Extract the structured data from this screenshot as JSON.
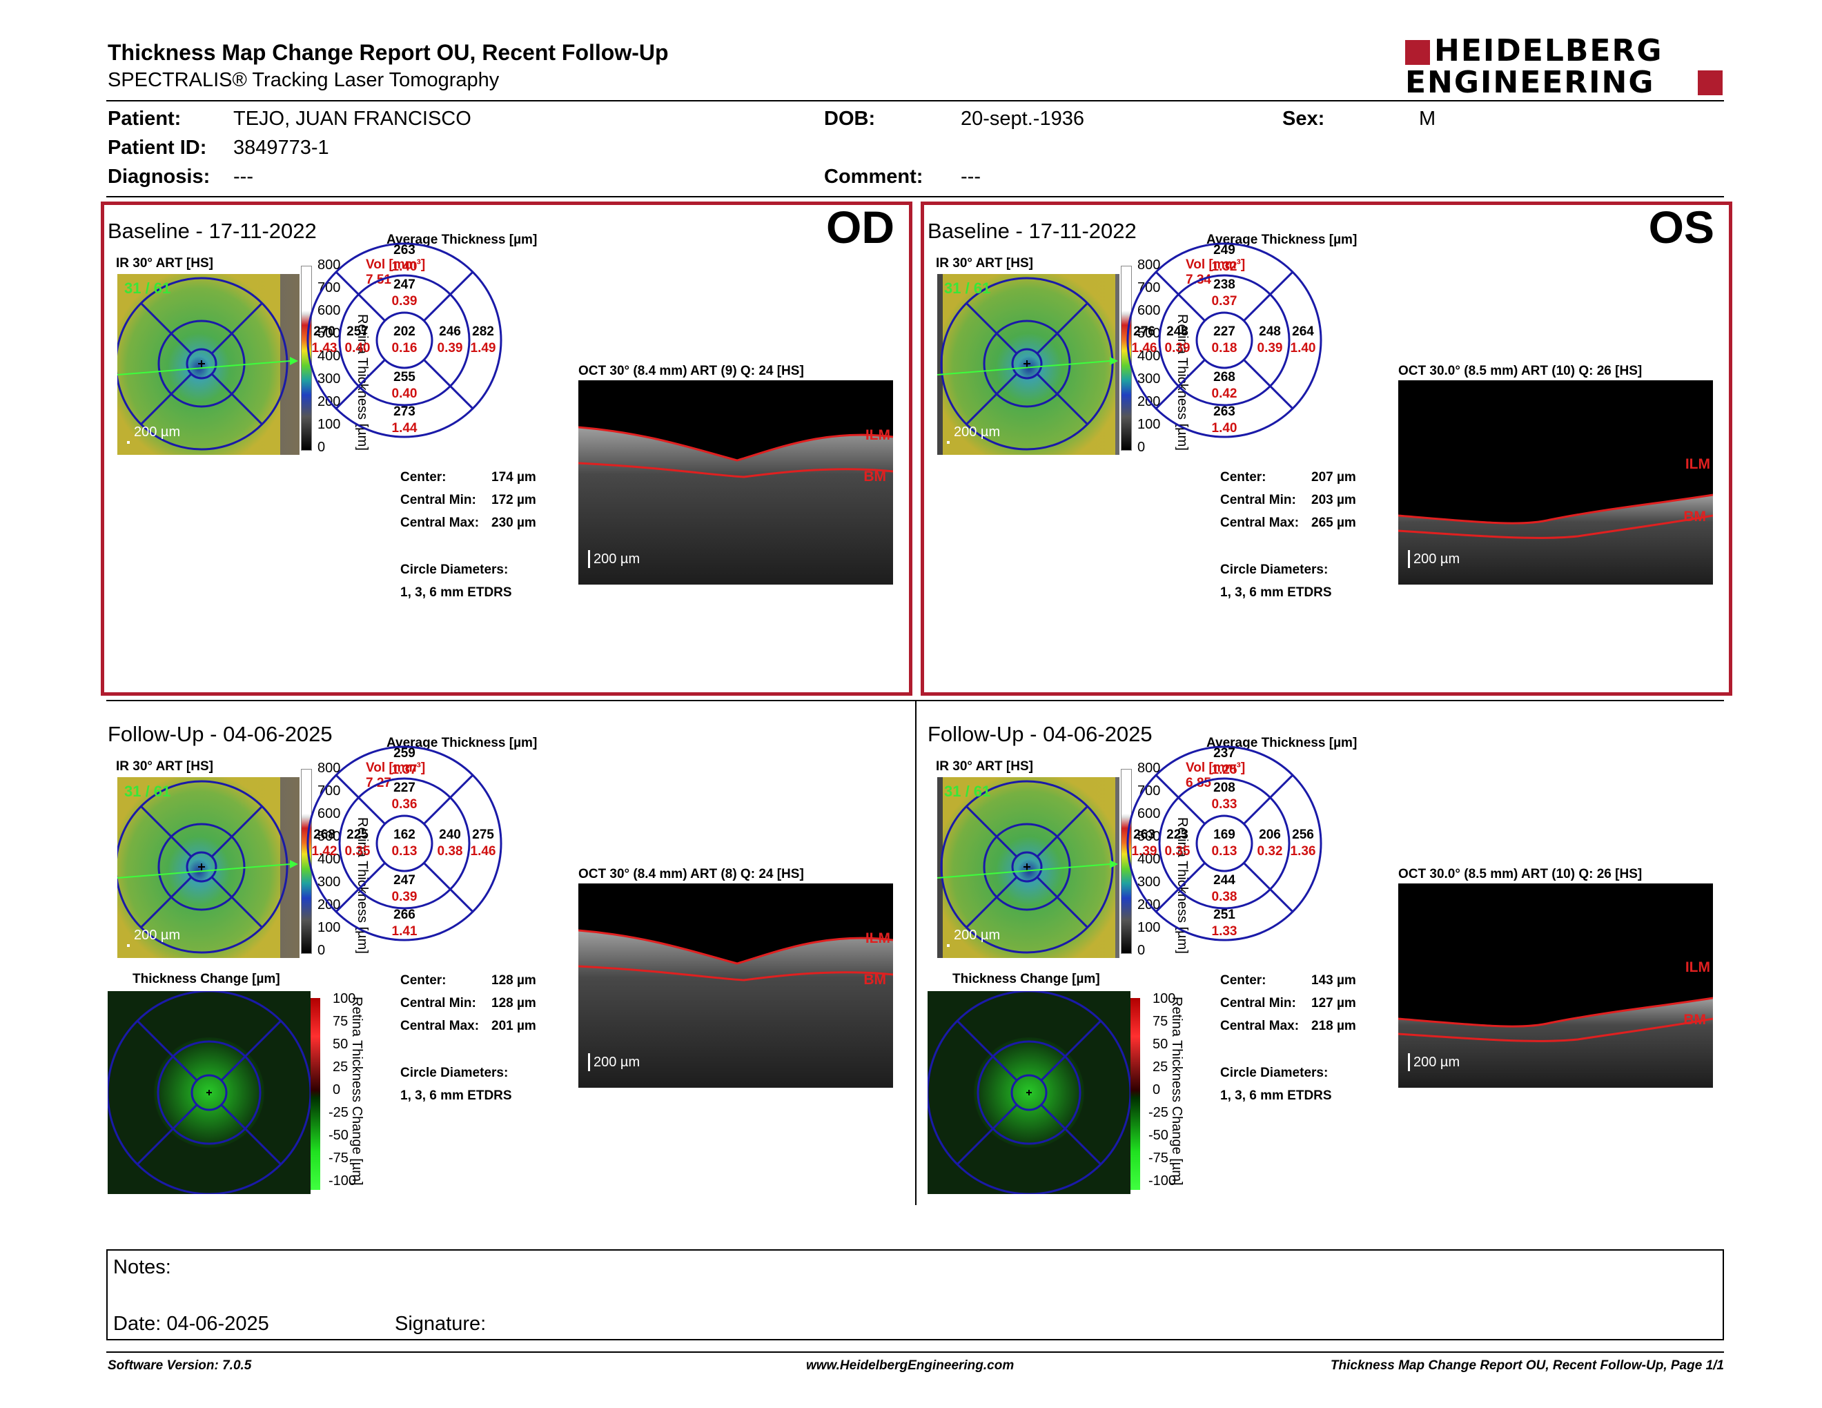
{
  "header": {
    "title": "Thickness Map Change Report OU, Recent Follow-Up",
    "subtitle": "SPECTRALIS® Tracking Laser Tomography",
    "logo_line1": "HEIDELBERG",
    "logo_line2": "ENGINEERING"
  },
  "patient": {
    "patient_label": "Patient:",
    "patient_value": "TEJO, JUAN FRANCISCO",
    "id_label": "Patient ID:",
    "id_value": "3849773-1",
    "diagnosis_label": "Diagnosis:",
    "diagnosis_value": "---",
    "dob_label": "DOB:",
    "dob_value": "20-sept.-1936",
    "comment_label": "Comment:",
    "comment_value": "---",
    "sex_label": "Sex:",
    "sex_value": "M"
  },
  "common": {
    "avg_thickness": "Average Thickness [µm]",
    "vol_label": "Vol [mm³]",
    "ir_label": "IR 30° ART [HS]",
    "scale_200": "200 µm",
    "center_label": "Center:",
    "cmin_label": "Central Min:",
    "cmax_label": "Central Max:",
    "circle_label": "Circle Diameters:",
    "circle_value": "1, 3, 6 mm ETDRS",
    "ilm": "ILM",
    "bm": "BM",
    "cbar_title": "Retina Thickness [µm]",
    "cbar_ticks": [
      "800",
      "700",
      "600",
      "500",
      "400",
      "300",
      "200",
      "100",
      "0"
    ],
    "change_title": "Thickness Change [µm]",
    "change_cbar_title": "Retina Thickness Change [µm]",
    "change_ticks": [
      "100",
      "75",
      "50",
      "25",
      "0",
      "-25",
      "-50",
      "-75",
      "-100"
    ],
    "fundus_tag": "31 / 61"
  },
  "panels": [
    {
      "id": "od-baseline",
      "title": "Baseline - 17-11-2022",
      "eye": "OD",
      "vol": "7.51",
      "oct_label": "OCT 30° (8.4 mm) ART (9) Q: 24 [HS]",
      "center": "174 µm",
      "cmin": "172 µm",
      "cmax": "230 µm",
      "sectors": {
        "outer_sup": [
          "263",
          "1.40"
        ],
        "inner_sup": [
          "247",
          "0.39"
        ],
        "outer_left": [
          "270",
          "1.43"
        ],
        "inner_left": [
          "257",
          "0.40"
        ],
        "center": [
          "202",
          "0.16"
        ],
        "inner_right": [
          "246",
          "0.39"
        ],
        "outer_right": [
          "282",
          "1.49"
        ],
        "inner_inf": [
          "255",
          "0.40"
        ],
        "outer_inf": [
          "273",
          "1.44"
        ]
      }
    },
    {
      "id": "os-baseline",
      "title": "Baseline - 17-11-2022",
      "eye": "OS",
      "vol": "7.34",
      "oct_label": "OCT 30.0° (8.5 mm) ART (10) Q: 26 [HS]",
      "center": "207 µm",
      "cmin": "203 µm",
      "cmax": "265 µm",
      "sectors": {
        "outer_sup": [
          "249",
          "1.32"
        ],
        "inner_sup": [
          "238",
          "0.37"
        ],
        "outer_left": [
          "276",
          "1.46"
        ],
        "inner_left": [
          "248",
          "0.39"
        ],
        "center": [
          "227",
          "0.18"
        ],
        "inner_right": [
          "248",
          "0.39"
        ],
        "outer_right": [
          "264",
          "1.40"
        ],
        "inner_inf": [
          "268",
          "0.42"
        ],
        "outer_inf": [
          "263",
          "1.40"
        ]
      }
    },
    {
      "id": "od-followup",
      "title": "Follow-Up - 04-06-2025",
      "eye": "",
      "vol": "7.27",
      "oct_label": "OCT 30° (8.4 mm) ART (8) Q: 24 [HS]",
      "center": "128 µm",
      "cmin": "128 µm",
      "cmax": "201 µm",
      "sectors": {
        "outer_sup": [
          "259",
          "1.37"
        ],
        "inner_sup": [
          "227",
          "0.36"
        ],
        "outer_left": [
          "268",
          "1.42"
        ],
        "inner_left": [
          "225",
          "0.35"
        ],
        "center": [
          "162",
          "0.13"
        ],
        "inner_right": [
          "240",
          "0.38"
        ],
        "outer_right": [
          "275",
          "1.46"
        ],
        "inner_inf": [
          "247",
          "0.39"
        ],
        "outer_inf": [
          "266",
          "1.41"
        ]
      }
    },
    {
      "id": "os-followup",
      "title": "Follow-Up - 04-06-2025",
      "eye": "",
      "vol": "6.85",
      "oct_label": "OCT 30.0° (8.5 mm) ART (10) Q: 26 [HS]",
      "center": "143 µm",
      "cmin": "127 µm",
      "cmax": "218 µm",
      "sectors": {
        "outer_sup": [
          "237",
          "1.25"
        ],
        "inner_sup": [
          "208",
          "0.33"
        ],
        "outer_left": [
          "263",
          "1.39"
        ],
        "inner_left": [
          "223",
          "0.35"
        ],
        "center": [
          "169",
          "0.13"
        ],
        "inner_right": [
          "206",
          "0.32"
        ],
        "outer_right": [
          "256",
          "1.36"
        ],
        "inner_inf": [
          "244",
          "0.38"
        ],
        "outer_inf": [
          "251",
          "1.33"
        ]
      }
    }
  ],
  "notes": {
    "notes_label": "Notes:",
    "date_label": "Date: 04-06-2025",
    "signature_label": "Signature:"
  },
  "footer": {
    "left": "Software Version: 7.0.5",
    "center": "www.HeidelbergEngineering.com",
    "right": "Thickness Map Change Report OU, Recent Follow-Up, Page 1/1"
  },
  "colors": {
    "brand_red": "#b01c2e",
    "grid_blue": "#1a1aa8",
    "value_red": "#d01010"
  }
}
